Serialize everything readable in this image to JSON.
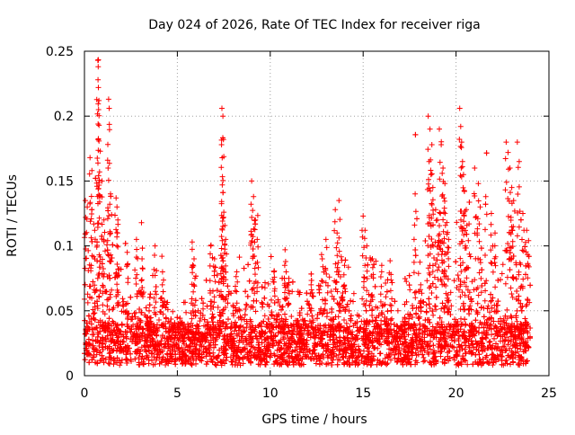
{
  "chart_data": {
    "type": "scatter",
    "title": "Day 024 of 2026, Rate Of TEC Index for receiver riga",
    "xlabel": "GPS time / hours",
    "ylabel": "ROTI / TECUs",
    "xlim": [
      0,
      25
    ],
    "ylim": [
      0,
      0.25
    ],
    "xticks": [
      0,
      5,
      10,
      15,
      20,
      25
    ],
    "xtick_labels": [
      "0",
      "5",
      "10",
      "15",
      "20",
      "25"
    ],
    "yticks": [
      0,
      0.05,
      0.1,
      0.15,
      0.2,
      0.25
    ],
    "ytick_labels": [
      "0",
      "0.05",
      "0.1",
      "0.15",
      "0.2",
      "0.25"
    ],
    "grid": true,
    "marker": "+",
    "series": [
      {
        "color": "#ff0000",
        "x_range": [
          0,
          24
        ],
        "baseline_band": [
          0.008,
          0.04
        ],
        "spikes": [
          {
            "x": 0.05,
            "y": 0.135
          },
          {
            "x": 0.15,
            "y": 0.13
          },
          {
            "x": 0.3,
            "y": 0.168
          },
          {
            "x": 0.4,
            "y": 0.158
          },
          {
            "x": 0.55,
            "y": 0.112
          },
          {
            "x": 0.72,
            "y": 0.243
          },
          {
            "x": 0.74,
            "y": 0.238
          },
          {
            "x": 0.73,
            "y": 0.228
          },
          {
            "x": 0.75,
            "y": 0.222
          },
          {
            "x": 0.78,
            "y": 0.212
          },
          {
            "x": 0.76,
            "y": 0.205
          },
          {
            "x": 0.85,
            "y": 0.173
          },
          {
            "x": 0.95,
            "y": 0.15
          },
          {
            "x": 1.05,
            "y": 0.12
          },
          {
            "x": 1.3,
            "y": 0.213
          },
          {
            "x": 1.33,
            "y": 0.206
          },
          {
            "x": 1.25,
            "y": 0.166
          },
          {
            "x": 1.4,
            "y": 0.14
          },
          {
            "x": 1.7,
            "y": 0.137
          },
          {
            "x": 1.75,
            "y": 0.13
          },
          {
            "x": 1.8,
            "y": 0.12
          },
          {
            "x": 2.3,
            "y": 0.095
          },
          {
            "x": 2.8,
            "y": 0.105
          },
          {
            "x": 3.1,
            "y": 0.09
          },
          {
            "x": 3.8,
            "y": 0.1
          },
          {
            "x": 4.2,
            "y": 0.08
          },
          {
            "x": 5.8,
            "y": 0.103
          },
          {
            "x": 5.9,
            "y": 0.09
          },
          {
            "x": 6.8,
            "y": 0.1
          },
          {
            "x": 7.0,
            "y": 0.09
          },
          {
            "x": 7.4,
            "y": 0.206
          },
          {
            "x": 7.45,
            "y": 0.2
          },
          {
            "x": 7.38,
            "y": 0.178
          },
          {
            "x": 7.42,
            "y": 0.147
          },
          {
            "x": 7.5,
            "y": 0.126
          },
          {
            "x": 7.45,
            "y": 0.115
          },
          {
            "x": 7.6,
            "y": 0.105
          },
          {
            "x": 8.2,
            "y": 0.08
          },
          {
            "x": 9.0,
            "y": 0.15
          },
          {
            "x": 9.1,
            "y": 0.138
          },
          {
            "x": 9.2,
            "y": 0.12
          },
          {
            "x": 9.3,
            "y": 0.105
          },
          {
            "x": 10.2,
            "y": 0.08
          },
          {
            "x": 10.8,
            "y": 0.097
          },
          {
            "x": 11.0,
            "y": 0.075
          },
          {
            "x": 12.2,
            "y": 0.07
          },
          {
            "x": 12.8,
            "y": 0.09
          },
          {
            "x": 13.0,
            "y": 0.105
          },
          {
            "x": 13.5,
            "y": 0.128
          },
          {
            "x": 13.7,
            "y": 0.135
          },
          {
            "x": 13.6,
            "y": 0.11
          },
          {
            "x": 14.0,
            "y": 0.085
          },
          {
            "x": 15.0,
            "y": 0.123
          },
          {
            "x": 15.1,
            "y": 0.112
          },
          {
            "x": 15.2,
            "y": 0.1
          },
          {
            "x": 15.5,
            "y": 0.09
          },
          {
            "x": 16.0,
            "y": 0.085
          },
          {
            "x": 16.5,
            "y": 0.078
          },
          {
            "x": 17.8,
            "y": 0.14
          },
          {
            "x": 18.1,
            "y": 0.07
          },
          {
            "x": 18.5,
            "y": 0.2
          },
          {
            "x": 18.6,
            "y": 0.19
          },
          {
            "x": 18.7,
            "y": 0.178
          },
          {
            "x": 18.55,
            "y": 0.165
          },
          {
            "x": 18.65,
            "y": 0.155
          },
          {
            "x": 18.75,
            "y": 0.145
          },
          {
            "x": 18.9,
            "y": 0.128
          },
          {
            "x": 19.0,
            "y": 0.12
          },
          {
            "x": 19.1,
            "y": 0.19
          },
          {
            "x": 19.2,
            "y": 0.178
          },
          {
            "x": 19.3,
            "y": 0.16
          },
          {
            "x": 19.4,
            "y": 0.148
          },
          {
            "x": 19.35,
            "y": 0.137
          },
          {
            "x": 19.5,
            "y": 0.118
          },
          {
            "x": 19.6,
            "y": 0.105
          },
          {
            "x": 20.2,
            "y": 0.206
          },
          {
            "x": 20.25,
            "y": 0.192
          },
          {
            "x": 20.3,
            "y": 0.18
          },
          {
            "x": 20.35,
            "y": 0.165
          },
          {
            "x": 20.4,
            "y": 0.155
          },
          {
            "x": 20.45,
            "y": 0.142
          },
          {
            "x": 20.55,
            "y": 0.128
          },
          {
            "x": 20.7,
            "y": 0.117
          },
          {
            "x": 21.0,
            "y": 0.16
          },
          {
            "x": 21.2,
            "y": 0.148
          },
          {
            "x": 21.3,
            "y": 0.13
          },
          {
            "x": 21.6,
            "y": 0.138
          },
          {
            "x": 21.9,
            "y": 0.125
          },
          {
            "x": 22.1,
            "y": 0.11
          },
          {
            "x": 22.7,
            "y": 0.18
          },
          {
            "x": 22.8,
            "y": 0.172
          },
          {
            "x": 22.9,
            "y": 0.16
          },
          {
            "x": 23.0,
            "y": 0.145
          },
          {
            "x": 23.1,
            "y": 0.135
          },
          {
            "x": 23.3,
            "y": 0.18
          },
          {
            "x": 23.4,
            "y": 0.165
          },
          {
            "x": 23.6,
            "y": 0.125
          },
          {
            "x": 23.8,
            "y": 0.112
          },
          {
            "x": 23.9,
            "y": 0.104
          }
        ]
      }
    ]
  }
}
